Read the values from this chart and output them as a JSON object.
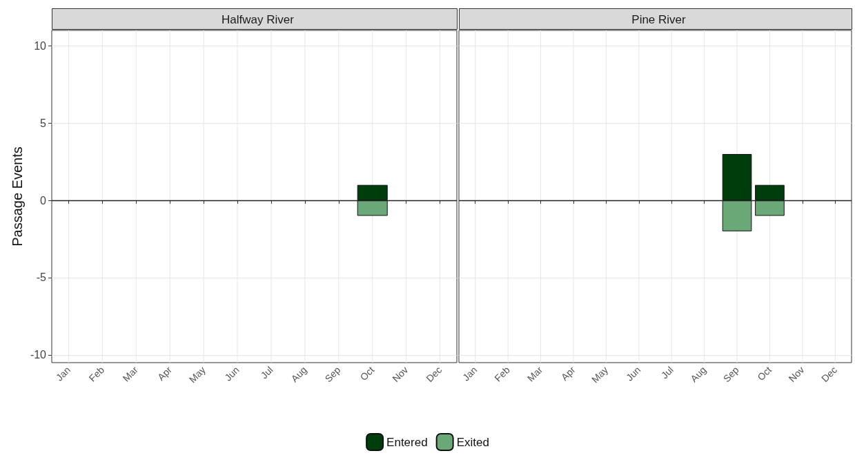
{
  "chart_data": [
    {
      "type": "bar",
      "title": "Halfway River",
      "ylabel": "Passage Events",
      "categories": [
        "Jan",
        "Feb",
        "Mar",
        "Apr",
        "May",
        "Jun",
        "Jul",
        "Aug",
        "Sep",
        "Oct",
        "Nov",
        "Dec"
      ],
      "stacked": true,
      "series": [
        {
          "name": "Entered",
          "color": "#003d0c",
          "values": [
            null,
            null,
            null,
            null,
            null,
            null,
            null,
            null,
            null,
            1,
            null,
            null
          ]
        },
        {
          "name": "Exited",
          "color": "#6aa878",
          "values": [
            null,
            null,
            null,
            null,
            null,
            null,
            null,
            null,
            null,
            -1,
            null,
            null
          ]
        }
      ],
      "ylim": [
        -10.5,
        11
      ],
      "yticks": [
        -10,
        -5,
        0,
        5,
        10
      ],
      "grid": true,
      "legend": "bottom",
      "ref_lines": [
        {
          "axis": "y",
          "value": 0,
          "color": "#222222"
        }
      ]
    },
    {
      "type": "bar",
      "title": "Pine River",
      "categories": [
        "Jan",
        "Feb",
        "Mar",
        "Apr",
        "May",
        "Jun",
        "Jul",
        "Aug",
        "Sep",
        "Oct",
        "Nov",
        "Dec"
      ],
      "stacked": true,
      "series": [
        {
          "color": "#003d0c",
          "values": [
            null,
            null,
            null,
            null,
            null,
            null,
            null,
            null,
            3,
            1,
            null,
            null
          ]
        },
        {
          "color": "#6aa878",
          "values": [
            null,
            null,
            null,
            null,
            null,
            null,
            null,
            null,
            -2,
            -1,
            null,
            null
          ]
        }
      ],
      "ylim": [
        -10.5,
        11
      ],
      "yticks": [
        -10,
        -5,
        0,
        5,
        10
      ],
      "grid": true,
      "tick_labels": "x",
      "ref_lines": [
        {
          "axis": "y",
          "value": 0,
          "color": "#222222"
        }
      ]
    }
  ]
}
